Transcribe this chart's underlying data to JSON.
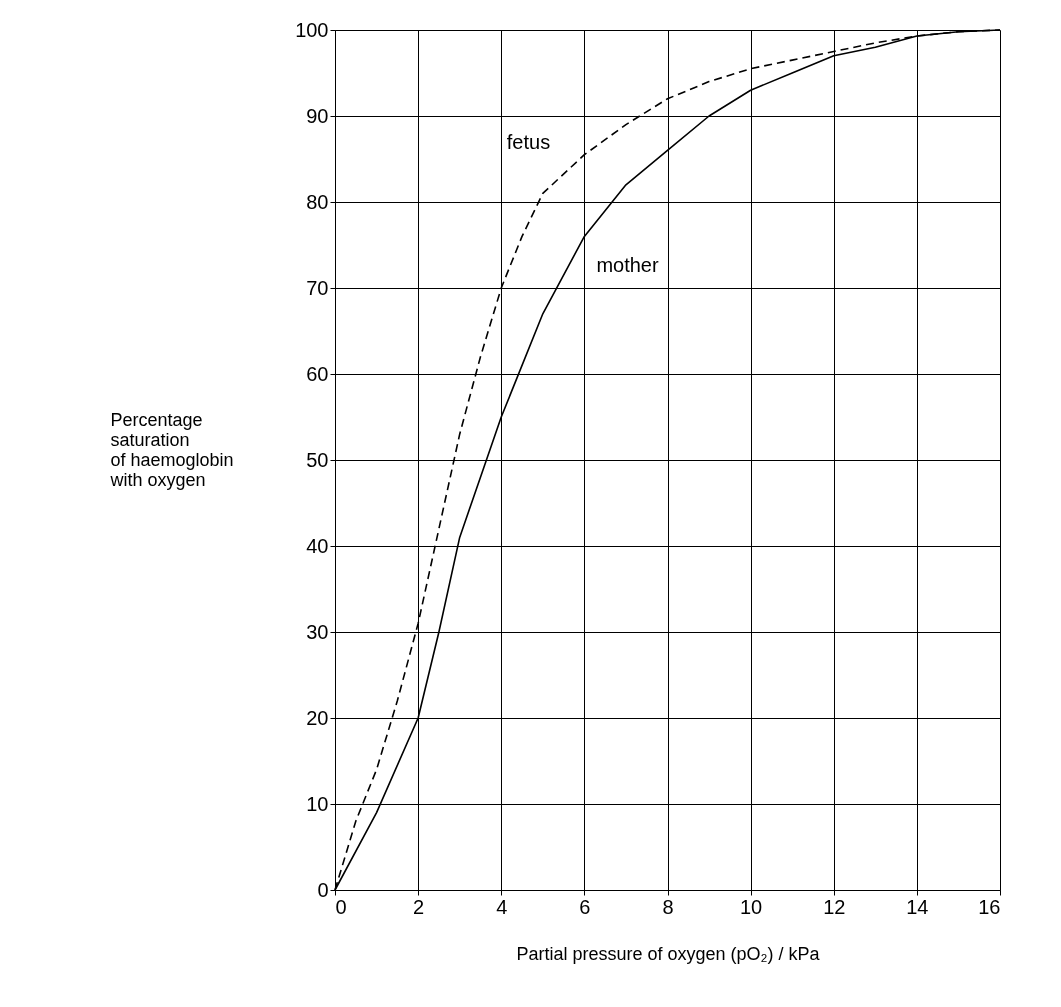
{
  "chart_data": {
    "type": "line",
    "xlabel": "Partial pressure of oxygen (pO₂) / kPa",
    "ylabel": "Percentage\nsaturation\nof haemoglobin\nwith oxygen",
    "series": [
      {
        "name": "fetus",
        "color": "#000000",
        "line_style": "dashed",
        "x": [
          0,
          0.5,
          1,
          1.5,
          2,
          2.5,
          3,
          3.5,
          4,
          4.5,
          5,
          6,
          7,
          8,
          9,
          10,
          11,
          12,
          13,
          14,
          15,
          16
        ],
        "values": [
          0,
          8,
          14,
          22,
          31,
          42,
          53,
          62,
          70,
          76,
          81,
          85.5,
          89,
          92,
          94,
          95.5,
          96.5,
          97.5,
          98.5,
          99.3,
          99.8,
          100
        ]
      },
      {
        "name": "mother",
        "color": "#000000",
        "line_style": "solid",
        "x": [
          0,
          1,
          2,
          2.5,
          3,
          3.5,
          4,
          5,
          6,
          7,
          8,
          9,
          10,
          11,
          12,
          13,
          14,
          15,
          16
        ],
        "values": [
          0,
          9,
          20,
          30,
          41,
          48,
          55,
          67,
          76,
          82,
          86,
          90,
          93,
          95,
          97,
          98,
          99.3,
          99.8,
          100
        ]
      }
    ],
    "xlim": [
      0,
      16
    ],
    "xticks": [
      0,
      2,
      4,
      6,
      8,
      10,
      12,
      14,
      16
    ],
    "ylim": [
      0,
      100
    ],
    "yticks": [
      0,
      10,
      20,
      30,
      40,
      50,
      60,
      70,
      80,
      90,
      100
    ],
    "grid": true,
    "marker": "none"
  }
}
